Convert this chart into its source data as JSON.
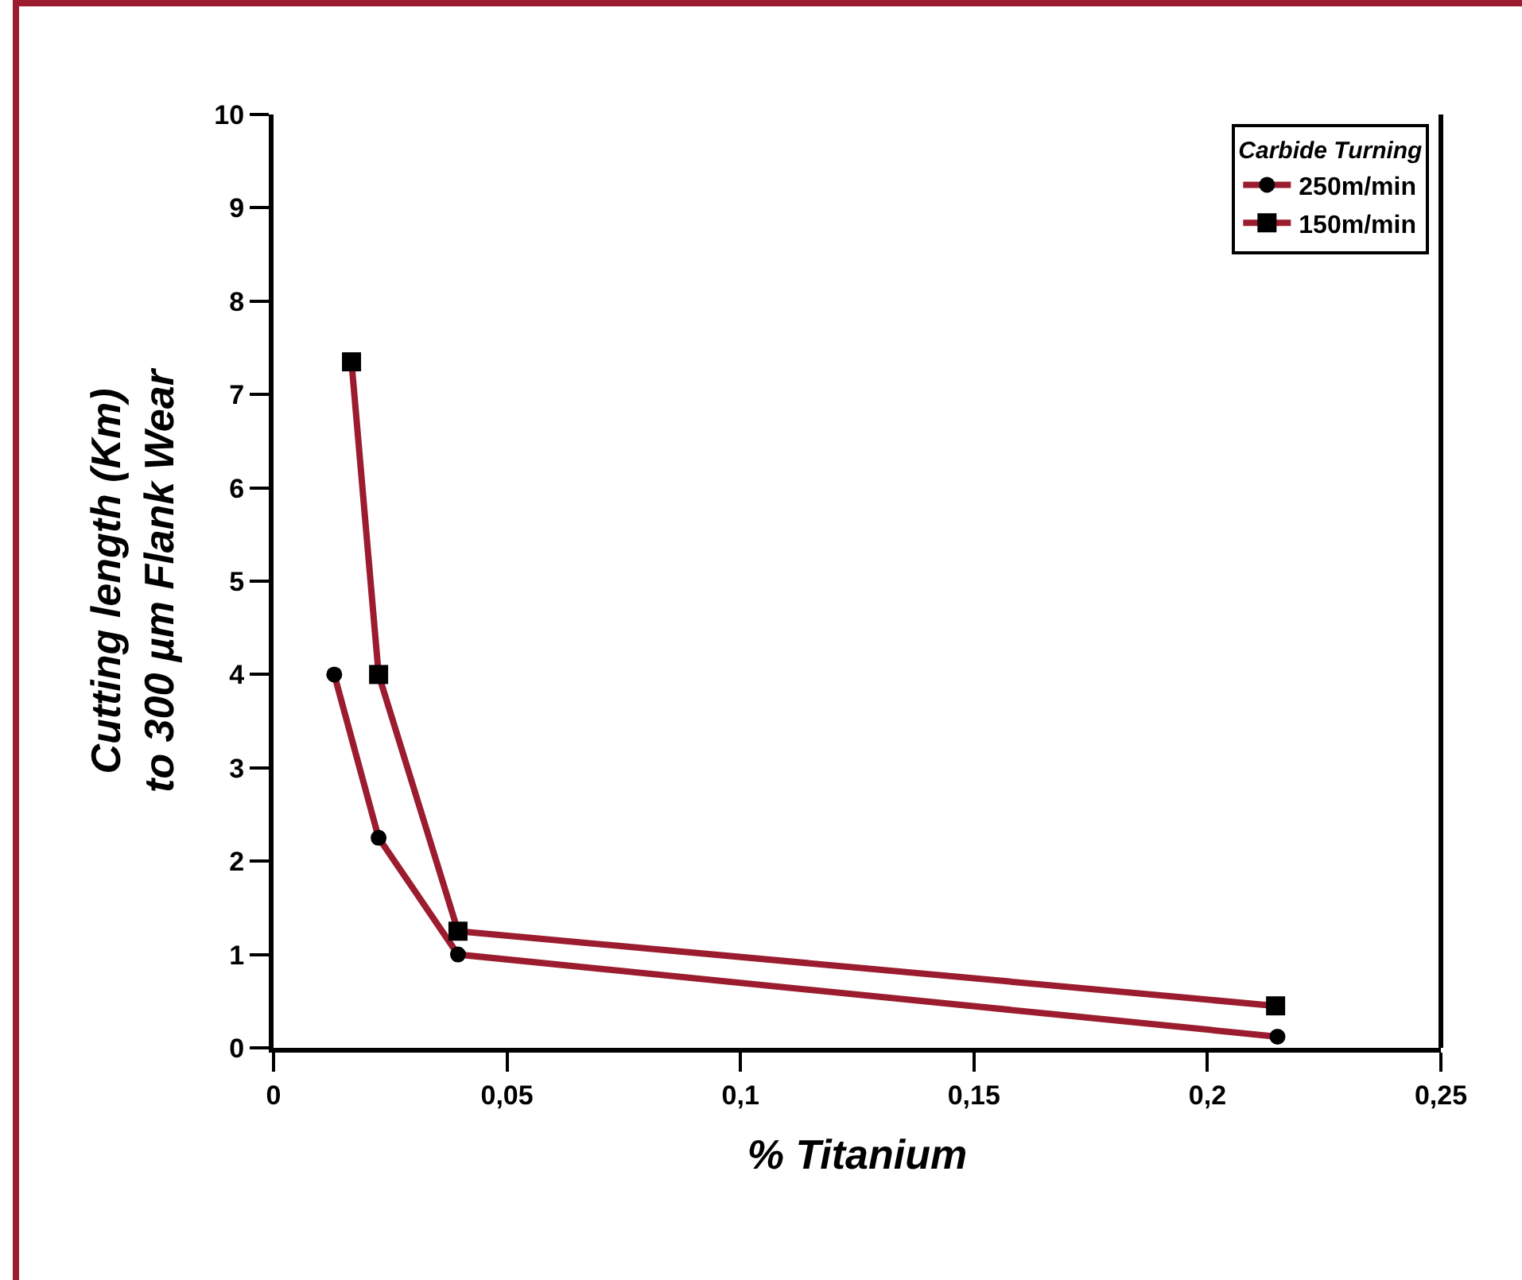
{
  "chart_data": {
    "type": "line",
    "xlabel": "% Titanium",
    "ylabel": "Cutting length (Km)\nto 300 µm Flank Wear",
    "legend_title": "Carbide Turning",
    "legend": "top right",
    "series": [
      {
        "name": "250m/min",
        "color": "#9b1c2e",
        "marker": "circle",
        "x": [
          0.013,
          0.0225,
          0.0395,
          0.215
        ],
        "values": [
          4.0,
          2.25,
          1.0,
          0.12
        ]
      },
      {
        "name": "150m/min",
        "color": "#9b1c2e",
        "marker": "square",
        "x": [
          0.0167,
          0.0225,
          0.0395,
          0.2146
        ],
        "values": [
          7.35,
          4.0,
          1.25,
          0.45
        ]
      }
    ],
    "xlim": [
      0,
      0.25
    ],
    "xticks": [
      0,
      {
        "value": 0.05,
        "label": "0,05"
      },
      {
        "value": 0.1,
        "label": "0,1"
      },
      {
        "value": 0.15,
        "label": "0,15"
      },
      {
        "value": 0.2,
        "label": "0,2"
      },
      {
        "value": 0.25,
        "label": "0,25"
      }
    ],
    "ylim": [
      0,
      10
    ],
    "yticks": [
      0,
      1,
      2,
      3,
      4,
      5,
      6,
      7,
      8,
      9,
      10
    ]
  }
}
